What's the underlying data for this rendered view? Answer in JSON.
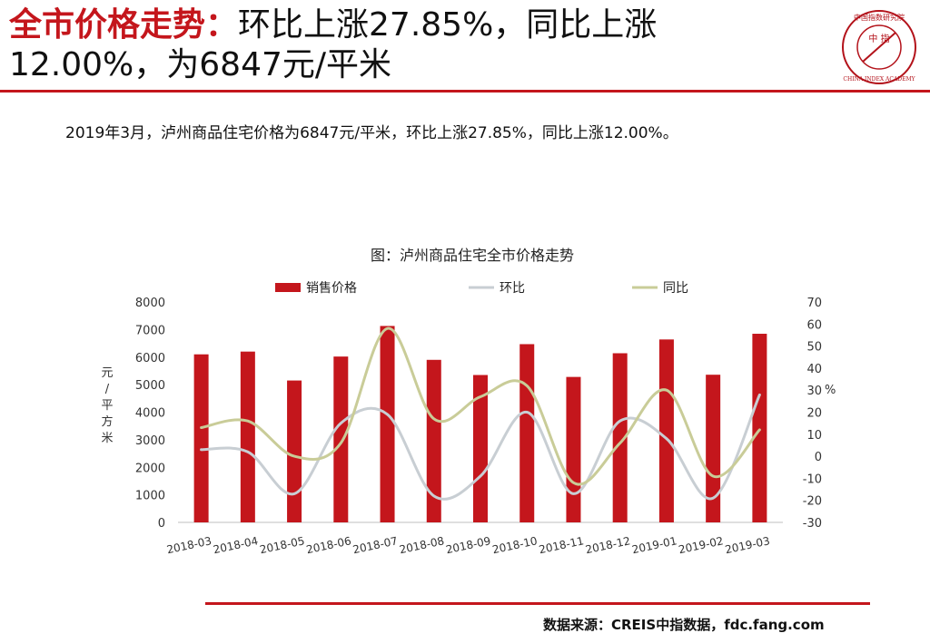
{
  "header": {
    "title_highlight": "全市价格走势：",
    "title_rest": "环比上涨27.85%，同比上涨12.00%，为6847元/平米",
    "colors": {
      "accent": "#c4161c"
    }
  },
  "logo": {
    "center_text": "中 指",
    "ring_text": "中国指数研究院",
    "en_text": "CHINA INDEX ACADEMY",
    "icon": "china-index-academy-logo"
  },
  "summary": {
    "text": "2019年3月，泸州商品住宅价格为6847元/平米，环比上涨27.85%，同比上涨12.00%。"
  },
  "chart_data": {
    "type": "bar",
    "title": "图：泸州商品住宅全市价格走势",
    "categories": [
      "2018-03",
      "2018-04",
      "2018-05",
      "2018-06",
      "2018-07",
      "2018-08",
      "2018-09",
      "2018-10",
      "2018-11",
      "2018-12",
      "2019-01",
      "2019-02",
      "2019-03"
    ],
    "series": [
      {
        "name": "销售价格",
        "kind": "bar",
        "axis": "left",
        "color": "#c4161c",
        "values": [
          6100,
          6200,
          5150,
          6020,
          7130,
          5900,
          5350,
          6470,
          5280,
          6140,
          6640,
          5360,
          6847
        ]
      },
      {
        "name": "环比",
        "kind": "line",
        "axis": "right",
        "color": "#c8ced3",
        "values": [
          3,
          2,
          -17,
          15,
          19,
          -18,
          -9,
          20,
          -17,
          16,
          8,
          -19,
          27.85
        ]
      },
      {
        "name": "同比",
        "kind": "line",
        "axis": "right",
        "color": "#c9cc98",
        "values": [
          13,
          16,
          0,
          6,
          58,
          17,
          27,
          32,
          -12,
          6,
          30,
          -9,
          12
        ]
      }
    ],
    "ylabel": "元/平方米",
    "ylim": [
      0,
      8000
    ],
    "y_ticks": [
      0,
      1000,
      2000,
      3000,
      4000,
      5000,
      6000,
      7000,
      8000
    ],
    "y2label": "%",
    "y2lim": [
      -30,
      70
    ],
    "y2_ticks": [
      -30,
      -20,
      -10,
      0,
      10,
      20,
      30,
      40,
      50,
      60,
      70
    ],
    "legend": "top",
    "grid": false
  },
  "source": {
    "text": "数据来源：CREIS中指数据，fdc.fang.com"
  }
}
